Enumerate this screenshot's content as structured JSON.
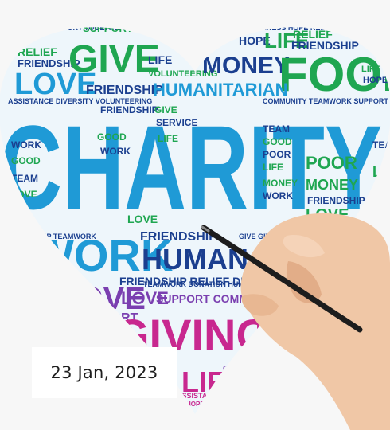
{
  "photo": {
    "word_cloud": {
      "main": "CHARITY",
      "words": [
        "GIVE",
        "FOOD",
        "WORK",
        "HUMANITARIAN",
        "LOVE",
        "GIVING",
        "LIFE",
        "MONEY",
        "SUPPORT",
        "RELIEF",
        "FRIENDSHIP",
        "HOPE",
        "POOR",
        "COMMUNITY",
        "TEAMWORK",
        "TOGETHERNESS",
        "VOLUNTEERING",
        "ASSISTANCE",
        "TEAM",
        "GOOD",
        "HUMAN",
        "DIVERSITY"
      ],
      "colors": {
        "blue": "#1f9ad6",
        "navy": "#1b3f8f",
        "green": "#1fa651",
        "purple": "#7a3fb0",
        "magenta": "#c8288f",
        "teal": "#1aa39a"
      }
    },
    "hand_with_pen": true
  },
  "date_badge": {
    "text": "23 Jan, 2023"
  }
}
